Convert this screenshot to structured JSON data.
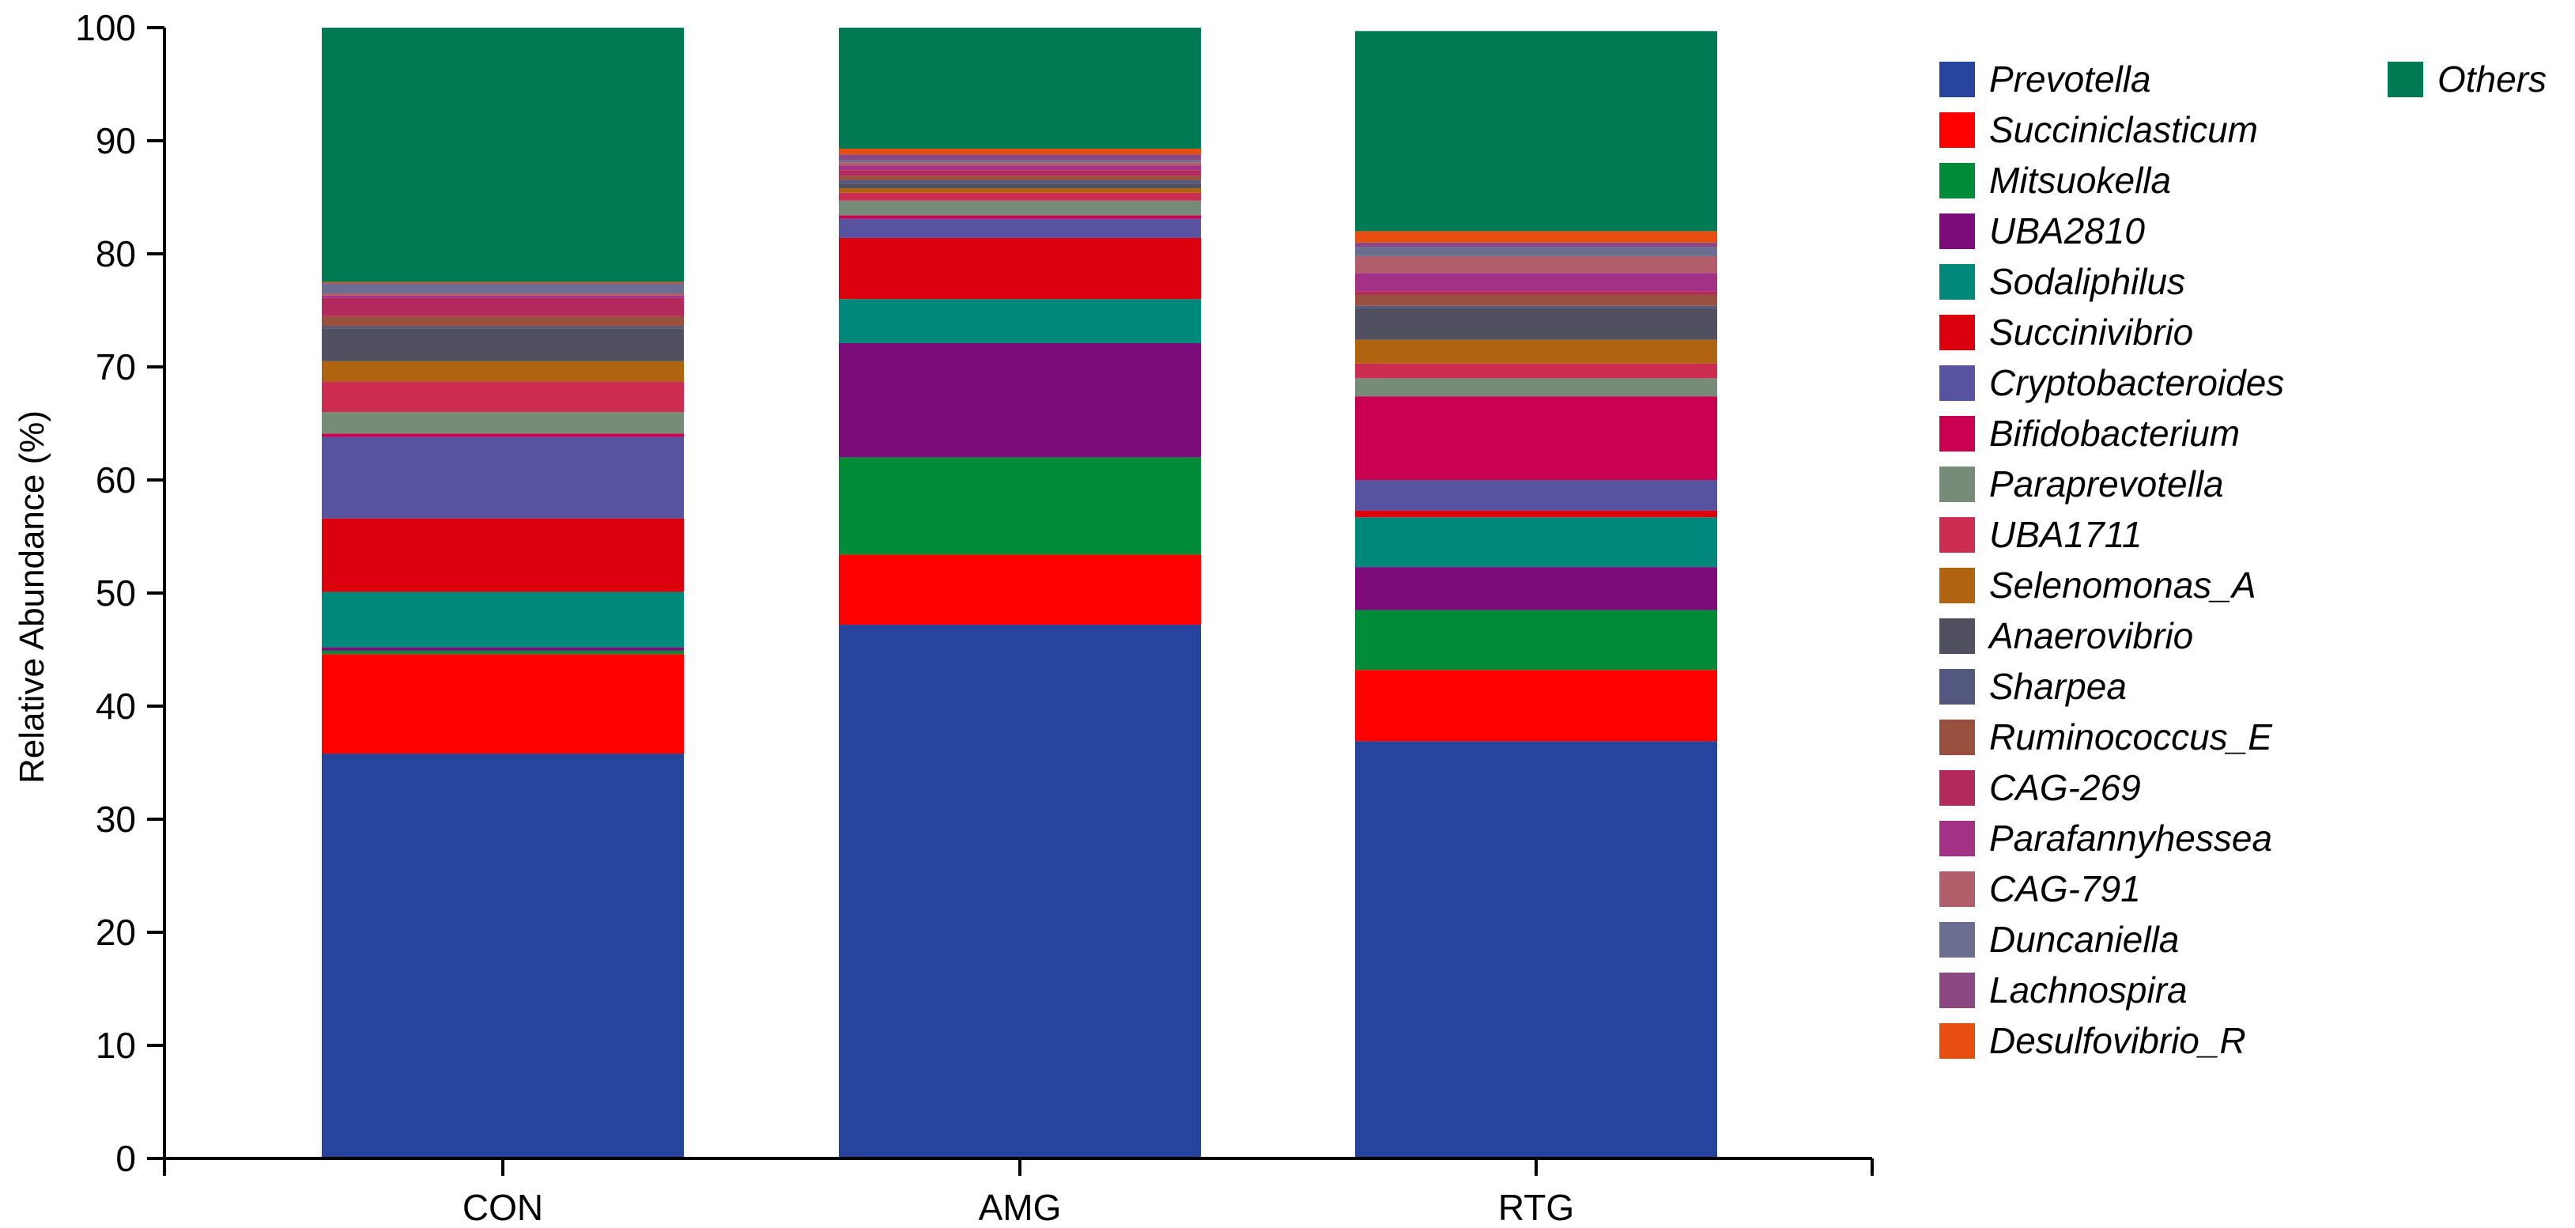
{
  "chart_data": {
    "type": "bar",
    "stacked": true,
    "title": "",
    "xlabel": "",
    "ylabel": "Relative Abundance (%)",
    "ylim": [
      0,
      100
    ],
    "yticks": [
      0,
      10,
      20,
      30,
      40,
      50,
      60,
      70,
      80,
      90,
      100
    ],
    "categories": [
      "CON",
      "AMG",
      "RTG"
    ],
    "grid": false,
    "legend_position": "right",
    "series": [
      {
        "name": "Prevotella",
        "color": "#27449C",
        "values": [
          35.8,
          47.2,
          36.9
        ]
      },
      {
        "name": "Succiniclasticum",
        "color": "#FF0000",
        "values": [
          8.8,
          6.2,
          6.3
        ]
      },
      {
        "name": "Mitsuokella",
        "color": "#008B38",
        "values": [
          0.3,
          8.6,
          5.3
        ]
      },
      {
        "name": "UBA2810",
        "color": "#7B0C7A",
        "values": [
          0.3,
          10.1,
          3.8
        ]
      },
      {
        "name": "Sodaliphilus",
        "color": "#00887A",
        "values": [
          4.9,
          3.9,
          4.4
        ]
      },
      {
        "name": "Succinivibrio",
        "color": "#DC000F",
        "values": [
          6.5,
          5.4,
          0.6
        ]
      },
      {
        "name": "Cryptobacteroides",
        "color": "#5653A0",
        "values": [
          7.2,
          1.7,
          2.7
        ]
      },
      {
        "name": "Bifidobacterium",
        "color": "#C8004F",
        "values": [
          0.3,
          0.3,
          7.4
        ]
      },
      {
        "name": "Paraprevotella",
        "color": "#768C78",
        "values": [
          1.9,
          1.3,
          1.6
        ]
      },
      {
        "name": "UBA1711",
        "color": "#CC2E52",
        "values": [
          2.7,
          0.7,
          1.3
        ]
      },
      {
        "name": "Selenomonas_A",
        "color": "#B0640F",
        "values": [
          1.8,
          0.4,
          2.1
        ]
      },
      {
        "name": "Anaerovibrio",
        "color": "#505060",
        "values": [
          2.9,
          0.4,
          2.8
        ]
      },
      {
        "name": "Sharpea",
        "color": "#52587F",
        "values": [
          0.2,
          0.3,
          0.2
        ]
      },
      {
        "name": "Ruminococcus_E",
        "color": "#9A503E",
        "values": [
          0.9,
          0.4,
          1.0
        ]
      },
      {
        "name": "CAG-269",
        "color": "#B4295B",
        "values": [
          1.6,
          0.5,
          0.3
        ]
      },
      {
        "name": "Parafannyhessea",
        "color": "#A33185",
        "values": [
          0.2,
          0.4,
          1.6
        ]
      },
      {
        "name": "CAG-791",
        "color": "#B05E6A",
        "values": [
          0.2,
          0.3,
          1.5
        ]
      },
      {
        "name": "Duncaniella",
        "color": "#6A6E90",
        "values": [
          0.8,
          0.2,
          0.8
        ]
      },
      {
        "name": "Lachnospira",
        "color": "#8A4782",
        "values": [
          0.1,
          0.5,
          0.4
        ]
      },
      {
        "name": "Desulfovibrio_R",
        "color": "#E84E10",
        "values": [
          0.1,
          0.5,
          1.0
        ]
      },
      {
        "name": "Others",
        "color": "#007A52",
        "values": [
          23.3,
          11.2,
          17.7
        ]
      }
    ]
  }
}
